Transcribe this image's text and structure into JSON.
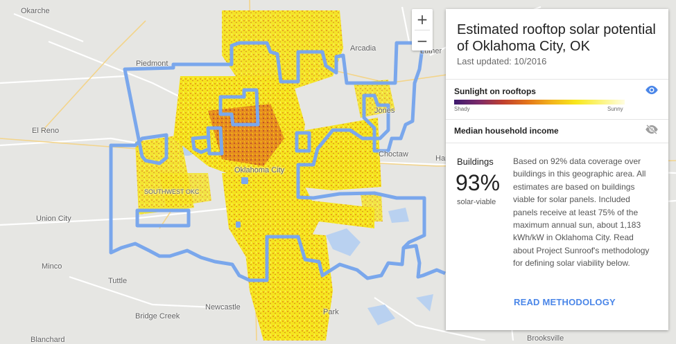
{
  "map": {
    "places": {
      "okarche": "Okarche",
      "piedmont": "Piedmont",
      "arcadia": "Arcadia",
      "luther": "Luther",
      "jones": "Jones",
      "el_reno": "El Reno",
      "choctaw": "Choctaw",
      "harrah": "Har",
      "oklahoma_city": "Oklahoma City",
      "union_city": "Union City",
      "minco": "Minco",
      "tuttle": "Tuttle",
      "newcastle": "Newcastle",
      "bridge_creek": "Bridge Creek",
      "park": "Park",
      "blanchard": "Blanchard",
      "brooksville": "Brooksville",
      "southwest_okc": "SOUTHWEST OKC"
    }
  },
  "zoom": {
    "in_label": "+",
    "out_label": "−"
  },
  "panel": {
    "title": "Estimated rooftop solar potential of Oklahoma City, OK",
    "updated": "Last updated: 10/2016",
    "sunlight_layer": {
      "label": "Sunlight on rooftops",
      "low_label": "Shady",
      "high_label": "Sunny",
      "icon": "eye-icon",
      "visible": true
    },
    "income_layer": {
      "label": "Median household income",
      "icon": "eye-off-icon",
      "visible": false
    },
    "buildings": {
      "label": "Buildings",
      "percent": "93%",
      "sublabel": "solar-viable",
      "percent_value": 93
    },
    "description": "Based on 92% data coverage over buildings in this geographic area. All estimates are based on buildings viable for solar panels. Included panels receive at least 75% of the maximum annual sun, about 1,183 kWh/kW in Oklahoma City. Read about Project Sunroof's methodology for defining solar viability below.",
    "read_methodology": "READ METHODOLOGY"
  },
  "colors": {
    "boundary": "#7aa7ec",
    "accent": "#4a86e8",
    "solar_low": "#3d1a6e",
    "solar_high": "#f8e71c"
  }
}
